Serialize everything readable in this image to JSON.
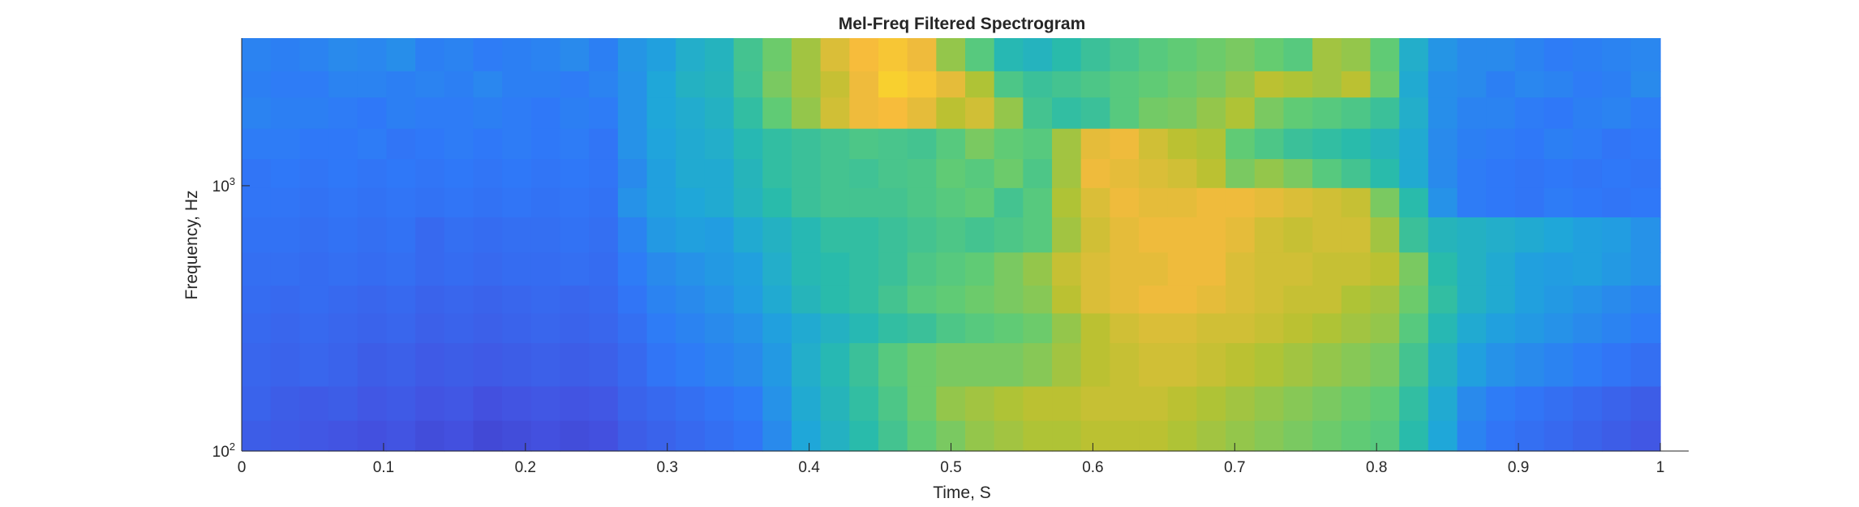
{
  "chart_data": {
    "type": "heatmap",
    "title": "Mel-Freq Filtered Spectrogram",
    "xlabel": "Time, S",
    "ylabel": "Frequency, Hz",
    "xlim": [
      0,
      1.02
    ],
    "ylim": [
      100,
      3600
    ],
    "yscale": "log",
    "x_ticks": [
      {
        "value": 0,
        "label": "0"
      },
      {
        "value": 0.1,
        "label": "0.1"
      },
      {
        "value": 0.2,
        "label": "0.2"
      },
      {
        "value": 0.3,
        "label": "0.3"
      },
      {
        "value": 0.4,
        "label": "0.4"
      },
      {
        "value": 0.5,
        "label": "0.5"
      },
      {
        "value": 0.6,
        "label": "0.6"
      },
      {
        "value": 0.7,
        "label": "0.7"
      },
      {
        "value": 0.8,
        "label": "0.8"
      },
      {
        "value": 0.9,
        "label": "0.9"
      },
      {
        "value": 1,
        "label": "1"
      }
    ],
    "y_ticks": [
      {
        "value": 100,
        "base": "10",
        "exponent": "2"
      },
      {
        "value": 1000,
        "base": "10",
        "exponent": "3"
      }
    ],
    "time_start": 0,
    "time_step": 0.0204,
    "freq_bands": [
      100,
      130,
      175,
      255,
      330,
      420,
      560,
      760,
      980,
      1260,
      1640,
      2150,
      2700,
      3600
    ],
    "colormap": [
      "#3e26a8",
      "#4352e1",
      "#2f78f8",
      "#1fa6db",
      "#29bbab",
      "#62cc73",
      "#b6c231",
      "#f7ba3d",
      "#f9f815"
    ],
    "value_range": [
      0,
      1
    ],
    "grid": false,
    "legend": "none",
    "intensity_rows_top_to_bottom": [
      [
        0.28,
        0.27,
        0.28,
        0.3,
        0.29,
        0.31,
        0.27,
        0.28,
        0.26,
        0.27,
        0.28,
        0.3,
        0.27,
        0.33,
        0.36,
        0.42,
        0.45,
        0.56,
        0.64,
        0.72,
        0.82,
        0.88,
        0.9,
        0.86,
        0.7,
        0.6,
        0.48,
        0.45,
        0.5,
        0.54,
        0.57,
        0.6,
        0.62,
        0.64,
        0.66,
        0.63,
        0.6,
        0.72,
        0.7,
        0.62,
        0.42,
        0.33,
        0.3,
        0.3,
        0.28,
        0.26,
        0.27,
        0.28,
        0.29,
        0.27,
        0.26,
        0.27,
        0.28,
        0.3,
        0.28,
        0.27,
        0.28,
        0.3,
        0.28,
        0.29,
        0.3,
        0.29,
        0.28,
        0.29,
        0.28,
        0.3,
        0.29,
        0.28,
        0.29
      ],
      [
        0.27,
        0.26,
        0.26,
        0.28,
        0.28,
        0.27,
        0.28,
        0.27,
        0.29,
        0.27,
        0.27,
        0.26,
        0.28,
        0.32,
        0.38,
        0.44,
        0.46,
        0.55,
        0.66,
        0.72,
        0.78,
        0.86,
        0.92,
        0.9,
        0.84,
        0.74,
        0.58,
        0.54,
        0.56,
        0.58,
        0.6,
        0.62,
        0.64,
        0.66,
        0.7,
        0.76,
        0.74,
        0.72,
        0.76,
        0.64,
        0.4,
        0.31,
        0.3,
        0.27,
        0.29,
        0.28,
        0.26,
        0.27,
        0.3,
        0.28,
        0.27,
        0.26,
        0.27,
        0.29,
        0.29,
        0.28,
        0.26,
        0.27,
        0.29,
        0.28,
        0.27,
        0.29,
        0.28,
        0.27,
        0.28,
        0.27,
        0.29,
        0.28,
        0.27
      ],
      [
        0.28,
        0.27,
        0.27,
        0.26,
        0.25,
        0.27,
        0.26,
        0.26,
        0.27,
        0.26,
        0.25,
        0.27,
        0.26,
        0.32,
        0.38,
        0.41,
        0.44,
        0.52,
        0.62,
        0.7,
        0.8,
        0.86,
        0.88,
        0.84,
        0.76,
        0.8,
        0.7,
        0.56,
        0.52,
        0.54,
        0.6,
        0.65,
        0.66,
        0.7,
        0.74,
        0.66,
        0.62,
        0.6,
        0.58,
        0.54,
        0.42,
        0.31,
        0.28,
        0.28,
        0.26,
        0.25,
        0.27,
        0.28,
        0.26,
        0.25,
        0.27,
        0.26,
        0.25,
        0.24,
        0.26,
        0.27,
        0.28,
        0.26,
        0.25,
        0.26,
        0.27,
        0.26,
        0.28,
        0.25,
        0.26,
        0.28,
        0.27,
        0.26,
        0.27
      ],
      [
        0.26,
        0.26,
        0.25,
        0.25,
        0.26,
        0.24,
        0.25,
        0.26,
        0.25,
        0.26,
        0.25,
        0.26,
        0.24,
        0.32,
        0.37,
        0.4,
        0.42,
        0.48,
        0.52,
        0.54,
        0.56,
        0.58,
        0.57,
        0.56,
        0.6,
        0.66,
        0.62,
        0.6,
        0.72,
        0.84,
        0.86,
        0.8,
        0.76,
        0.74,
        0.62,
        0.58,
        0.54,
        0.52,
        0.5,
        0.46,
        0.4,
        0.3,
        0.27,
        0.26,
        0.25,
        0.27,
        0.26,
        0.24,
        0.25,
        0.26,
        0.27,
        0.25,
        0.24,
        0.26,
        0.25,
        0.27,
        0.26,
        0.24,
        0.25,
        0.26,
        0.27,
        0.25,
        0.26,
        0.27,
        0.24,
        0.25,
        0.26,
        0.27,
        0.26
      ],
      [
        0.24,
        0.25,
        0.24,
        0.25,
        0.24,
        0.25,
        0.24,
        0.25,
        0.24,
        0.25,
        0.24,
        0.25,
        0.24,
        0.3,
        0.36,
        0.4,
        0.4,
        0.46,
        0.52,
        0.54,
        0.56,
        0.55,
        0.57,
        0.58,
        0.62,
        0.6,
        0.64,
        0.58,
        0.72,
        0.86,
        0.84,
        0.82,
        0.8,
        0.76,
        0.66,
        0.7,
        0.66,
        0.6,
        0.56,
        0.5,
        0.4,
        0.3,
        0.26,
        0.25,
        0.24,
        0.25,
        0.24,
        0.25,
        0.24,
        0.25,
        0.24,
        0.25,
        0.24,
        0.25,
        0.24,
        0.25,
        0.24,
        0.25,
        0.24,
        0.25,
        0.24,
        0.25,
        0.24,
        0.25,
        0.24,
        0.25,
        0.24,
        0.25,
        0.24
      ],
      [
        0.24,
        0.24,
        0.23,
        0.24,
        0.23,
        0.24,
        0.23,
        0.24,
        0.23,
        0.24,
        0.23,
        0.24,
        0.23,
        0.32,
        0.36,
        0.38,
        0.4,
        0.45,
        0.5,
        0.54,
        0.56,
        0.56,
        0.56,
        0.58,
        0.6,
        0.62,
        0.56,
        0.6,
        0.74,
        0.82,
        0.86,
        0.84,
        0.84,
        0.86,
        0.86,
        0.84,
        0.82,
        0.8,
        0.78,
        0.66,
        0.5,
        0.32,
        0.26,
        0.25,
        0.24,
        0.26,
        0.25,
        0.24,
        0.25,
        0.24,
        0.23,
        0.24,
        0.23,
        0.24,
        0.23,
        0.25,
        0.24,
        0.23,
        0.24,
        0.23,
        0.24,
        0.23,
        0.22,
        0.23,
        0.24,
        0.23,
        0.22,
        0.23,
        0.24
      ],
      [
        0.23,
        0.23,
        0.22,
        0.23,
        0.22,
        0.23,
        0.2,
        0.22,
        0.21,
        0.22,
        0.22,
        0.23,
        0.22,
        0.28,
        0.34,
        0.36,
        0.35,
        0.4,
        0.44,
        0.48,
        0.52,
        0.52,
        0.54,
        0.56,
        0.58,
        0.56,
        0.58,
        0.6,
        0.72,
        0.8,
        0.84,
        0.86,
        0.86,
        0.86,
        0.84,
        0.8,
        0.78,
        0.8,
        0.8,
        0.72,
        0.54,
        0.46,
        0.44,
        0.42,
        0.4,
        0.38,
        0.36,
        0.35,
        0.32,
        0.28,
        0.26,
        0.24,
        0.22,
        0.21,
        0.2,
        0.22,
        0.23,
        0.21,
        0.22,
        0.2,
        0.22,
        0.21,
        0.2,
        0.22,
        0.23,
        0.22,
        0.2,
        0.22,
        0.23
      ],
      [
        0.22,
        0.22,
        0.21,
        0.22,
        0.21,
        0.22,
        0.2,
        0.21,
        0.2,
        0.21,
        0.21,
        0.22,
        0.21,
        0.26,
        0.3,
        0.32,
        0.34,
        0.36,
        0.42,
        0.48,
        0.5,
        0.52,
        0.54,
        0.58,
        0.6,
        0.62,
        0.66,
        0.7,
        0.78,
        0.82,
        0.84,
        0.84,
        0.86,
        0.86,
        0.82,
        0.8,
        0.8,
        0.78,
        0.78,
        0.76,
        0.66,
        0.5,
        0.44,
        0.4,
        0.36,
        0.35,
        0.36,
        0.34,
        0.32,
        0.3,
        0.28,
        0.27,
        0.26,
        0.24,
        0.22,
        0.21,
        0.2,
        0.22,
        0.23,
        0.21,
        0.2,
        0.22,
        0.21,
        0.2,
        0.22,
        0.2,
        0.21,
        0.22,
        0.23
      ],
      [
        0.21,
        0.2,
        0.21,
        0.2,
        0.19,
        0.2,
        0.18,
        0.19,
        0.18,
        0.19,
        0.2,
        0.19,
        0.2,
        0.24,
        0.28,
        0.3,
        0.32,
        0.35,
        0.4,
        0.46,
        0.5,
        0.52,
        0.56,
        0.6,
        0.62,
        0.64,
        0.66,
        0.68,
        0.76,
        0.82,
        0.84,
        0.86,
        0.86,
        0.84,
        0.82,
        0.8,
        0.78,
        0.78,
        0.74,
        0.72,
        0.64,
        0.52,
        0.44,
        0.4,
        0.36,
        0.34,
        0.32,
        0.3,
        0.28,
        0.27,
        0.26,
        0.24,
        0.22,
        0.2,
        0.19,
        0.2,
        0.21,
        0.2,
        0.19,
        0.18,
        0.19,
        0.2,
        0.19,
        0.18,
        0.2,
        0.19,
        0.2,
        0.21,
        0.22
      ],
      [
        0.2,
        0.19,
        0.2,
        0.19,
        0.18,
        0.19,
        0.17,
        0.18,
        0.17,
        0.18,
        0.19,
        0.18,
        0.19,
        0.22,
        0.26,
        0.28,
        0.3,
        0.32,
        0.36,
        0.4,
        0.44,
        0.48,
        0.52,
        0.54,
        0.58,
        0.6,
        0.62,
        0.64,
        0.7,
        0.76,
        0.8,
        0.82,
        0.82,
        0.8,
        0.8,
        0.78,
        0.76,
        0.74,
        0.72,
        0.7,
        0.6,
        0.48,
        0.4,
        0.36,
        0.34,
        0.32,
        0.3,
        0.28,
        0.26,
        0.25,
        0.24,
        0.22,
        0.2,
        0.19,
        0.18,
        0.19,
        0.2,
        0.19,
        0.18,
        0.17,
        0.18,
        0.19,
        0.18,
        0.17,
        0.19,
        0.18,
        0.19,
        0.2,
        0.21
      ],
      [
        0.19,
        0.18,
        0.19,
        0.18,
        0.16,
        0.17,
        0.15,
        0.16,
        0.15,
        0.16,
        0.17,
        0.16,
        0.17,
        0.2,
        0.24,
        0.26,
        0.28,
        0.3,
        0.34,
        0.42,
        0.48,
        0.54,
        0.6,
        0.64,
        0.66,
        0.66,
        0.66,
        0.68,
        0.72,
        0.76,
        0.78,
        0.8,
        0.8,
        0.78,
        0.76,
        0.74,
        0.72,
        0.7,
        0.68,
        0.66,
        0.56,
        0.44,
        0.36,
        0.32,
        0.3,
        0.28,
        0.26,
        0.24,
        0.22,
        0.21,
        0.2,
        0.19,
        0.18,
        0.17,
        0.16,
        0.17,
        0.18,
        0.17,
        0.16,
        0.15,
        0.16,
        0.17,
        0.16,
        0.15,
        0.17,
        0.16,
        0.17,
        0.18,
        0.19
      ],
      [
        0.18,
        0.16,
        0.15,
        0.16,
        0.14,
        0.15,
        0.13,
        0.14,
        0.12,
        0.13,
        0.14,
        0.13,
        0.14,
        0.18,
        0.2,
        0.22,
        0.24,
        0.26,
        0.32,
        0.4,
        0.46,
        0.52,
        0.58,
        0.64,
        0.7,
        0.72,
        0.74,
        0.76,
        0.76,
        0.78,
        0.78,
        0.78,
        0.76,
        0.74,
        0.72,
        0.7,
        0.68,
        0.66,
        0.64,
        0.62,
        0.52,
        0.4,
        0.3,
        0.26,
        0.24,
        0.22,
        0.2,
        0.18,
        0.16,
        0.15,
        0.14,
        0.13,
        0.12,
        0.13,
        0.14,
        0.15,
        0.16,
        0.15,
        0.14,
        0.13,
        0.14,
        0.15,
        0.14,
        0.13,
        0.15,
        0.14,
        0.15,
        0.16,
        0.17
      ],
      [
        0.16,
        0.15,
        0.14,
        0.13,
        0.12,
        0.13,
        0.11,
        0.12,
        0.1,
        0.11,
        0.12,
        0.11,
        0.12,
        0.16,
        0.18,
        0.2,
        0.22,
        0.24,
        0.3,
        0.38,
        0.44,
        0.5,
        0.56,
        0.62,
        0.66,
        0.7,
        0.72,
        0.74,
        0.74,
        0.76,
        0.76,
        0.76,
        0.74,
        0.72,
        0.7,
        0.68,
        0.66,
        0.64,
        0.62,
        0.6,
        0.5,
        0.38,
        0.28,
        0.24,
        0.22,
        0.2,
        0.18,
        0.16,
        0.14,
        0.13,
        0.12,
        0.11,
        0.1,
        0.11,
        0.12,
        0.13,
        0.14,
        0.13,
        0.12,
        0.11,
        0.12,
        0.13,
        0.12,
        0.11,
        0.13,
        0.12,
        0.13,
        0.14,
        0.15
      ]
    ]
  }
}
